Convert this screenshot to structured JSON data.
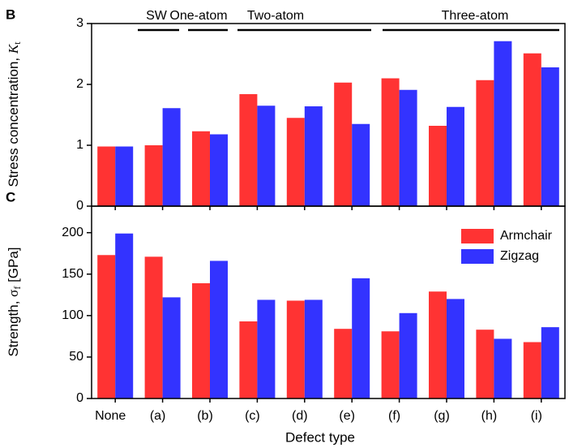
{
  "chart_data": [
    {
      "type": "bar",
      "panel_label": "B",
      "y_label": {
        "text": "Stress concentration, ",
        "symbol": "K",
        "subscript": "t"
      },
      "categories": [
        null,
        null,
        null,
        null,
        null,
        null,
        null,
        null,
        null,
        null
      ],
      "series": [
        {
          "name": "Armchair",
          "color": "#ff3333",
          "values": [
            0.98,
            1.0,
            1.23,
            1.84,
            1.45,
            2.03,
            2.1,
            1.32,
            2.07,
            2.51
          ]
        },
        {
          "name": "Zigzag",
          "color": "#3333ff",
          "values": [
            0.98,
            1.61,
            1.18,
            1.65,
            1.64,
            1.35,
            1.91,
            1.63,
            2.71,
            2.28
          ]
        }
      ],
      "ylim": [
        0,
        3
      ],
      "yticks": [
        0,
        1,
        2,
        3
      ],
      "annotations": [
        "SW",
        "One-atom",
        "Two-atom",
        "Three-atom"
      ]
    },
    {
      "type": "bar",
      "panel_label": "C",
      "y_label": {
        "text": "Strength, ",
        "symbol": "σ",
        "subscript": "f",
        "unit": " [GPa]"
      },
      "x_label": "Defect type",
      "categories": [
        "None",
        "(a)",
        "(b)",
        "(c)",
        "(d)",
        "(e)",
        "(f)",
        "(g)",
        "(h)",
        "(i)"
      ],
      "series": [
        {
          "name": "Armchair",
          "color": "#ff3333",
          "values": [
            173,
            171,
            139,
            93,
            118,
            84,
            81,
            129,
            83,
            68
          ]
        },
        {
          "name": "Zigzag",
          "color": "#3333ff",
          "values": [
            199,
            122,
            166,
            119,
            119,
            145,
            103,
            120,
            72,
            86
          ]
        }
      ],
      "ylim": [
        0,
        232
      ],
      "yticks": [
        0,
        50,
        100,
        150,
        200
      ],
      "legend": "upper right"
    }
  ]
}
